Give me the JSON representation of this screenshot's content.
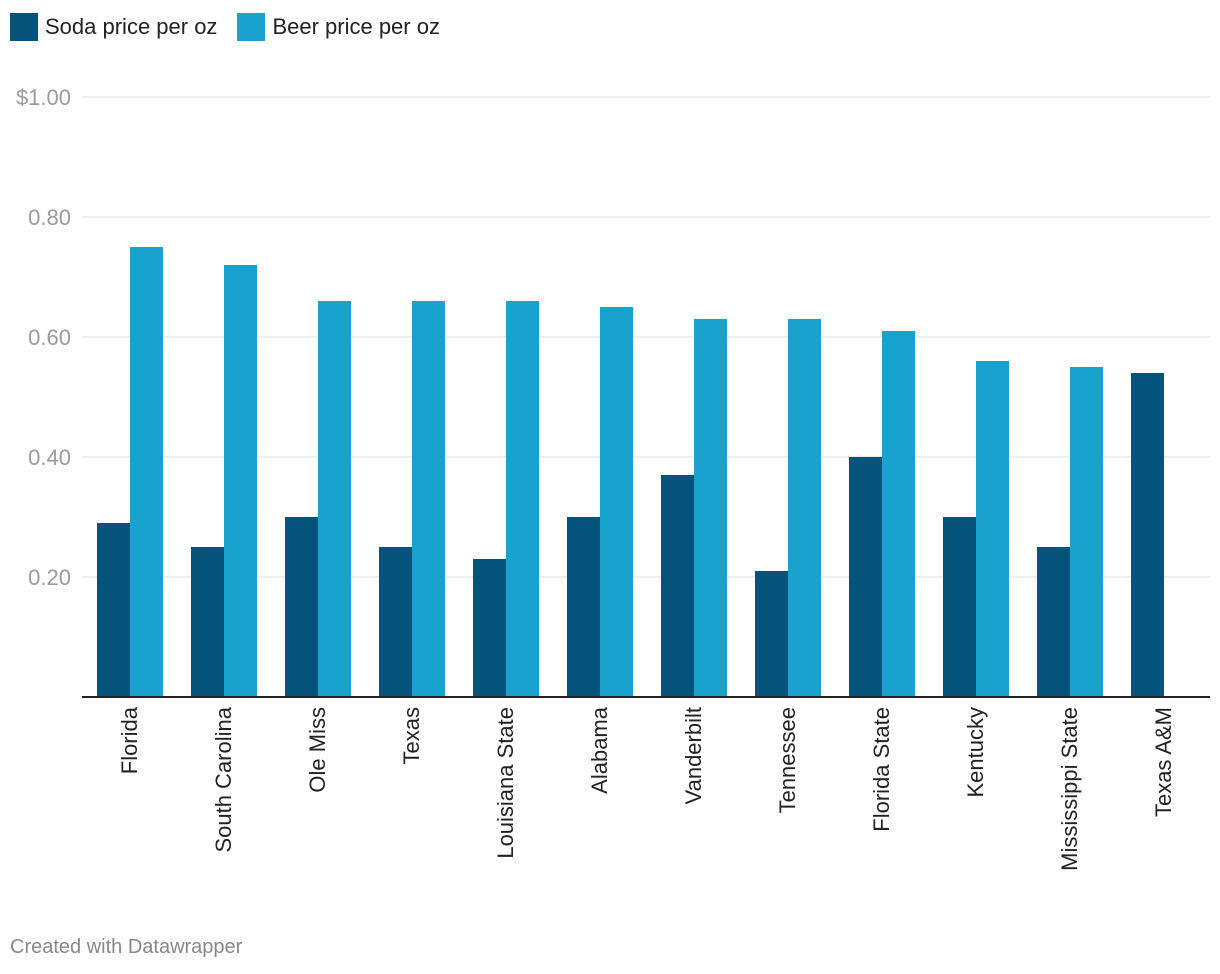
{
  "legend": {
    "items": [
      {
        "label": "Soda price per oz",
        "color": "#04537a"
      },
      {
        "label": "Beer price per oz",
        "color": "#1aa2cf"
      }
    ]
  },
  "footer": {
    "credit": "Created with Datawrapper"
  },
  "chart_data": {
    "type": "bar",
    "categories": [
      "Florida",
      "South Carolina",
      "Ole Miss",
      "Texas",
      "Louisiana State",
      "Alabama",
      "Vanderbilt",
      "Tennessee",
      "Florida State",
      "Kentucky",
      "Mississippi State",
      "Texas A&M"
    ],
    "series": [
      {
        "name": "Soda price per oz",
        "color": "#04537a",
        "values": [
          0.29,
          0.25,
          0.3,
          0.25,
          0.23,
          0.3,
          0.37,
          0.21,
          0.4,
          0.3,
          0.25,
          0.54
        ]
      },
      {
        "name": "Beer price per oz",
        "color": "#1aa2cf",
        "values": [
          0.75,
          0.72,
          0.66,
          0.66,
          0.66,
          0.65,
          0.63,
          0.63,
          0.61,
          0.56,
          0.55,
          null
        ]
      }
    ],
    "y_ticks": [
      {
        "value": 0.2,
        "label": "0.20"
      },
      {
        "value": 0.4,
        "label": "0.40"
      },
      {
        "value": 0.6,
        "label": "0.60"
      },
      {
        "value": 0.8,
        "label": "0.80"
      },
      {
        "value": 1.0,
        "label": "$1.00"
      }
    ],
    "ylim": [
      0,
      1.0
    ],
    "grid": true,
    "legend_position": "top-left",
    "title": "",
    "xlabel": "",
    "ylabel": ""
  }
}
